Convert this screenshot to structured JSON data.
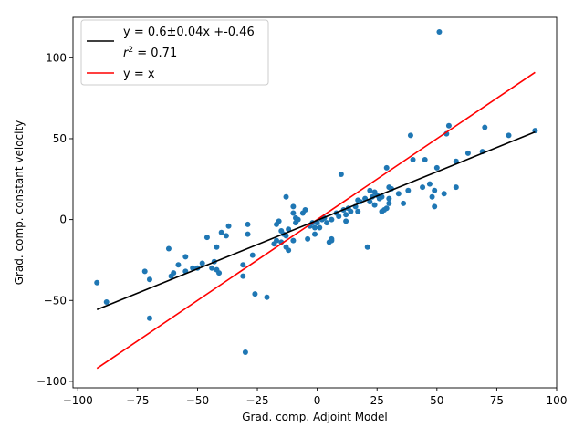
{
  "chart_data": {
    "type": "scatter",
    "xlabel": "Grad. comp. Adjoint Model",
    "ylabel": "Grad. comp. constant velocity",
    "xlim": [
      -102,
      100
    ],
    "ylim": [
      -104,
      125
    ],
    "xticks": [
      -100,
      -75,
      -50,
      -25,
      0,
      25,
      50,
      75,
      100
    ],
    "yticks": [
      -100,
      -50,
      0,
      50,
      100
    ],
    "grid": false,
    "legend_position": "top-left",
    "colors": {
      "points": "#1f77b4",
      "fit": "#000000",
      "identity": "#ff0000"
    },
    "legend": {
      "fit_label": "y = 0.6±0.04x +-0.46",
      "r2_label": "0.71",
      "identity_label": "y = x"
    },
    "fit_line": {
      "slope": 0.6,
      "intercept": -0.46,
      "x_range": [
        -92,
        91
      ]
    },
    "identity_line": {
      "x_range": [
        -92,
        91
      ]
    },
    "points": [
      [
        -92,
        -39
      ],
      [
        -88,
        -51
      ],
      [
        -72,
        -32
      ],
      [
        -70,
        -37
      ],
      [
        -70,
        -61
      ],
      [
        -62,
        -18
      ],
      [
        -61,
        -35
      ],
      [
        -60,
        -33
      ],
      [
        -58,
        -28
      ],
      [
        -55,
        -32
      ],
      [
        -55,
        -23
      ],
      [
        -52,
        -30
      ],
      [
        -50,
        -30
      ],
      [
        -48,
        -27
      ],
      [
        -46,
        -11
      ],
      [
        -44,
        -30
      ],
      [
        -43,
        -26
      ],
      [
        -42,
        -31
      ],
      [
        -42,
        -17
      ],
      [
        -41,
        -33
      ],
      [
        -40,
        -8
      ],
      [
        -38,
        -10
      ],
      [
        -37,
        -4
      ],
      [
        -31,
        -35
      ],
      [
        -31,
        -28
      ],
      [
        -30,
        -82
      ],
      [
        -29,
        -3
      ],
      [
        -29,
        -9
      ],
      [
        -27,
        -22
      ],
      [
        -26,
        -46
      ],
      [
        -21,
        -48
      ],
      [
        -18,
        -15
      ],
      [
        -17,
        -3
      ],
      [
        -17,
        -13
      ],
      [
        -16,
        -1
      ],
      [
        -15,
        -14
      ],
      [
        -15,
        -7
      ],
      [
        -14,
        -9
      ],
      [
        -13,
        -17
      ],
      [
        -13,
        14
      ],
      [
        -13,
        -10
      ],
      [
        -12,
        -19
      ],
      [
        -12,
        -6
      ],
      [
        -10,
        4
      ],
      [
        -10,
        8
      ],
      [
        -10,
        -13
      ],
      [
        -9,
        -2
      ],
      [
        -9,
        1
      ],
      [
        -8,
        0
      ],
      [
        -6,
        4
      ],
      [
        -5,
        6
      ],
      [
        -4,
        -12
      ],
      [
        -3,
        -4
      ],
      [
        -2,
        -2
      ],
      [
        -1,
        -5
      ],
      [
        -1,
        -9
      ],
      [
        0,
        -2
      ],
      [
        1,
        -5
      ],
      [
        2,
        0
      ],
      [
        3,
        1
      ],
      [
        4,
        -2
      ],
      [
        5,
        -14
      ],
      [
        6,
        -13
      ],
      [
        6,
        -12
      ],
      [
        6,
        0
      ],
      [
        8,
        4
      ],
      [
        9,
        2
      ],
      [
        10,
        28
      ],
      [
        11,
        6
      ],
      [
        12,
        3
      ],
      [
        12,
        -1
      ],
      [
        13,
        7
      ],
      [
        14,
        5
      ],
      [
        16,
        8
      ],
      [
        17,
        5
      ],
      [
        17,
        12
      ],
      [
        18,
        11
      ],
      [
        20,
        13
      ],
      [
        21,
        -17
      ],
      [
        22,
        18
      ],
      [
        22,
        11
      ],
      [
        23,
        14
      ],
      [
        24,
        17
      ],
      [
        24,
        9
      ],
      [
        25,
        15
      ],
      [
        26,
        13
      ],
      [
        27,
        14
      ],
      [
        27,
        5
      ],
      [
        28,
        6
      ],
      [
        29,
        7
      ],
      [
        29,
        32
      ],
      [
        30,
        13
      ],
      [
        30,
        10
      ],
      [
        30,
        20
      ],
      [
        31,
        19
      ],
      [
        34,
        16
      ],
      [
        36,
        10
      ],
      [
        38,
        18
      ],
      [
        39,
        52
      ],
      [
        40,
        37
      ],
      [
        44,
        20
      ],
      [
        45,
        37
      ],
      [
        47,
        22
      ],
      [
        48,
        14
      ],
      [
        49,
        18
      ],
      [
        49,
        8
      ],
      [
        50,
        32
      ],
      [
        51,
        116
      ],
      [
        53,
        16
      ],
      [
        54,
        53
      ],
      [
        55,
        58
      ],
      [
        58,
        20
      ],
      [
        58,
        36
      ],
      [
        63,
        41
      ],
      [
        69,
        42
      ],
      [
        70,
        57
      ],
      [
        80,
        52
      ],
      [
        91,
        55
      ]
    ]
  }
}
